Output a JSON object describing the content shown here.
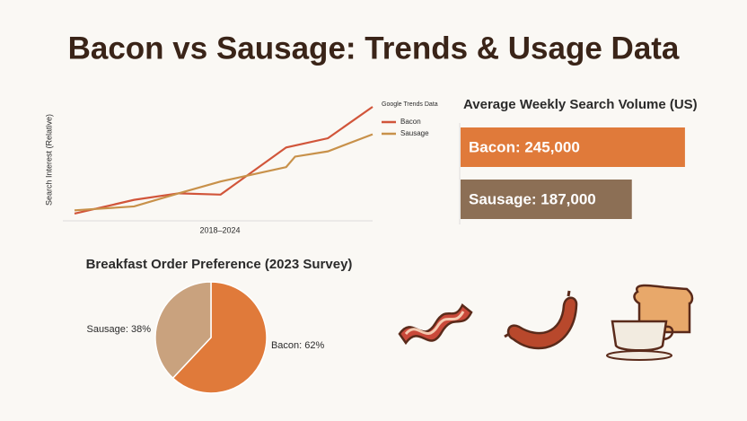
{
  "title": "Bacon vs Sausage: Trends & Usage Data",
  "chart_data": [
    {
      "type": "line",
      "xlabel": "2018–2024",
      "ylabel": "Search Interest (Relative)",
      "legend_title": "Google Trends Data",
      "xlim": [
        0,
        100
      ],
      "ylim": [
        0,
        100
      ],
      "series": [
        {
          "name": "Bacon",
          "color": "#d1553a",
          "x": [
            0,
            20,
            35,
            49,
            71,
            85,
            100
          ],
          "values": [
            5.5,
            16,
            21,
            20,
            56,
            63,
            87
          ]
        },
        {
          "name": "Sausage",
          "color": "#c8914a",
          "x": [
            0,
            20,
            35,
            49,
            71,
            74,
            85,
            100
          ],
          "values": [
            8,
            11,
            21,
            30,
            41,
            49,
            53,
            66
          ]
        }
      ]
    },
    {
      "type": "hbar",
      "title": "Average Weekly Search Volume (US)",
      "xlim": [
        0,
        250000
      ],
      "values": [
        245000,
        187000
      ],
      "value_labels": [
        "Bacon: 245,000",
        "Sausage: 187,000"
      ],
      "colors": [
        "#e07a3a",
        "#8c6f55"
      ]
    },
    {
      "type": "pie",
      "title": "Breakfast Order Preference (2023 Survey)",
      "values": [
        62,
        38
      ],
      "value_labels": [
        "Bacon: 62%",
        "Sausage: 38%"
      ],
      "colors": [
        "#e07a3a",
        "#c9a27e"
      ]
    }
  ]
}
